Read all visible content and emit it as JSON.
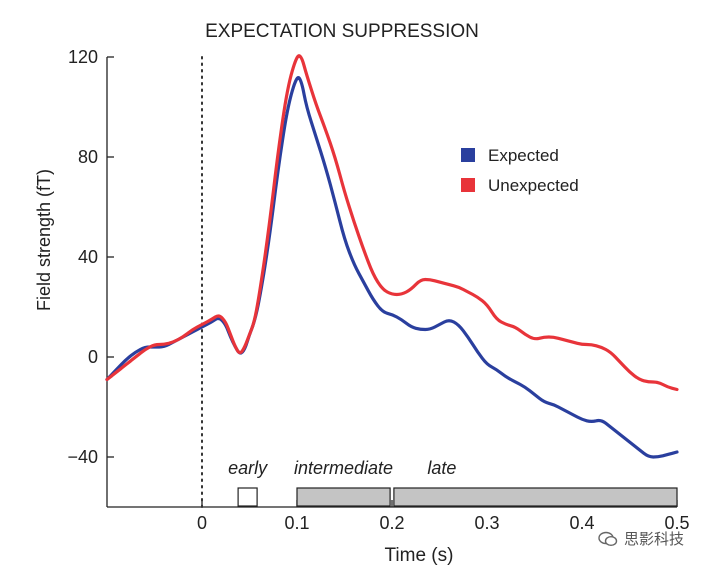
{
  "chart_data": {
    "type": "line",
    "title": "EXPECTATION SUPPRESSION",
    "xlabel": "Time (s)",
    "ylabel": "Field strength (fT)",
    "xlim": [
      -0.1,
      0.5
    ],
    "ylim": [
      -60,
      120
    ],
    "x_ticks": [
      0,
      0.1,
      0.2,
      0.3,
      0.4,
      0.5
    ],
    "x_tick_labels": [
      "0",
      "0.1",
      "0.2",
      "0.3",
      "0.4",
      "0.5"
    ],
    "y_ticks": [
      -40,
      0,
      40,
      80,
      120
    ],
    "y_tick_labels": [
      "−40",
      "0",
      "40",
      "80",
      "120"
    ],
    "stimulus_onset": 0,
    "legend": {
      "position": "top-right"
    },
    "series": [
      {
        "name": "Expected",
        "color": "#2a3f9e",
        "points": [
          [
            -0.1,
            -9
          ],
          [
            -0.09,
            -5
          ],
          [
            -0.08,
            -1
          ],
          [
            -0.07,
            2
          ],
          [
            -0.06,
            4
          ],
          [
            -0.05,
            4
          ],
          [
            -0.04,
            4
          ],
          [
            -0.03,
            6
          ],
          [
            -0.02,
            8
          ],
          [
            -0.01,
            10
          ],
          [
            0,
            12
          ],
          [
            0.01,
            14
          ],
          [
            0.018,
            16
          ],
          [
            0.025,
            13
          ],
          [
            0.03,
            8
          ],
          [
            0.035,
            4
          ],
          [
            0.04,
            1
          ],
          [
            0.045,
            3
          ],
          [
            0.05,
            9
          ],
          [
            0.055,
            14
          ],
          [
            0.06,
            22
          ],
          [
            0.07,
            45
          ],
          [
            0.08,
            75
          ],
          [
            0.09,
            100
          ],
          [
            0.1,
            113
          ],
          [
            0.105,
            110
          ],
          [
            0.11,
            100
          ],
          [
            0.12,
            88
          ],
          [
            0.13,
            76
          ],
          [
            0.14,
            62
          ],
          [
            0.15,
            47
          ],
          [
            0.16,
            37
          ],
          [
            0.17,
            30
          ],
          [
            0.18,
            23
          ],
          [
            0.19,
            18
          ],
          [
            0.2,
            17
          ],
          [
            0.21,
            15
          ],
          [
            0.22,
            12
          ],
          [
            0.23,
            11
          ],
          [
            0.24,
            11
          ],
          [
            0.25,
            13
          ],
          [
            0.26,
            15
          ],
          [
            0.27,
            13
          ],
          [
            0.28,
            8
          ],
          [
            0.29,
            2
          ],
          [
            0.3,
            -3
          ],
          [
            0.31,
            -5
          ],
          [
            0.32,
            -8
          ],
          [
            0.33,
            -10
          ],
          [
            0.34,
            -12
          ],
          [
            0.35,
            -15
          ],
          [
            0.36,
            -18
          ],
          [
            0.37,
            -19
          ],
          [
            0.38,
            -21
          ],
          [
            0.39,
            -23
          ],
          [
            0.4,
            -25
          ],
          [
            0.41,
            -26
          ],
          [
            0.42,
            -25
          ],
          [
            0.43,
            -28
          ],
          [
            0.44,
            -31
          ],
          [
            0.45,
            -34
          ],
          [
            0.46,
            -37
          ],
          [
            0.47,
            -40
          ],
          [
            0.48,
            -40
          ],
          [
            0.49,
            -39
          ],
          [
            0.5,
            -38
          ]
        ]
      },
      {
        "name": "Unexpected",
        "color": "#e8343a",
        "points": [
          [
            -0.1,
            -9
          ],
          [
            -0.09,
            -6
          ],
          [
            -0.08,
            -3
          ],
          [
            -0.07,
            0
          ],
          [
            -0.06,
            3
          ],
          [
            -0.05,
            5
          ],
          [
            -0.04,
            5
          ],
          [
            -0.03,
            6
          ],
          [
            -0.02,
            8
          ],
          [
            -0.01,
            11
          ],
          [
            0,
            13
          ],
          [
            0.01,
            15
          ],
          [
            0.018,
            17
          ],
          [
            0.025,
            14
          ],
          [
            0.03,
            9
          ],
          [
            0.035,
            4
          ],
          [
            0.04,
            1
          ],
          [
            0.045,
            4
          ],
          [
            0.05,
            9
          ],
          [
            0.055,
            14
          ],
          [
            0.06,
            24
          ],
          [
            0.07,
            50
          ],
          [
            0.08,
            82
          ],
          [
            0.09,
            108
          ],
          [
            0.1,
            121
          ],
          [
            0.105,
            120
          ],
          [
            0.11,
            113
          ],
          [
            0.12,
            101
          ],
          [
            0.13,
            91
          ],
          [
            0.14,
            80
          ],
          [
            0.15,
            66
          ],
          [
            0.16,
            54
          ],
          [
            0.17,
            43
          ],
          [
            0.18,
            33
          ],
          [
            0.19,
            27
          ],
          [
            0.2,
            25
          ],
          [
            0.21,
            25
          ],
          [
            0.22,
            27
          ],
          [
            0.23,
            31
          ],
          [
            0.24,
            31
          ],
          [
            0.25,
            30
          ],
          [
            0.26,
            29
          ],
          [
            0.27,
            28
          ],
          [
            0.28,
            26
          ],
          [
            0.29,
            24
          ],
          [
            0.3,
            21
          ],
          [
            0.31,
            15
          ],
          [
            0.32,
            13
          ],
          [
            0.33,
            12
          ],
          [
            0.34,
            9
          ],
          [
            0.35,
            7
          ],
          [
            0.36,
            8
          ],
          [
            0.37,
            8
          ],
          [
            0.38,
            7
          ],
          [
            0.39,
            6
          ],
          [
            0.4,
            5
          ],
          [
            0.41,
            5
          ],
          [
            0.42,
            4
          ],
          [
            0.43,
            2
          ],
          [
            0.44,
            -2
          ],
          [
            0.45,
            -6
          ],
          [
            0.46,
            -9
          ],
          [
            0.47,
            -10
          ],
          [
            0.48,
            -10
          ],
          [
            0.49,
            -12
          ],
          [
            0.5,
            -13
          ]
        ]
      }
    ],
    "windows": [
      {
        "label": "early",
        "start": 0.038,
        "end": 0.058,
        "fill": "#ffffff"
      },
      {
        "label": "intermediate",
        "start": 0.1,
        "end": 0.198,
        "fill": "#c4c4c4"
      },
      {
        "label": "late",
        "start": 0.202,
        "end": 0.5,
        "fill": "#c4c4c4"
      }
    ]
  },
  "watermark": {
    "text": "思影科技"
  }
}
